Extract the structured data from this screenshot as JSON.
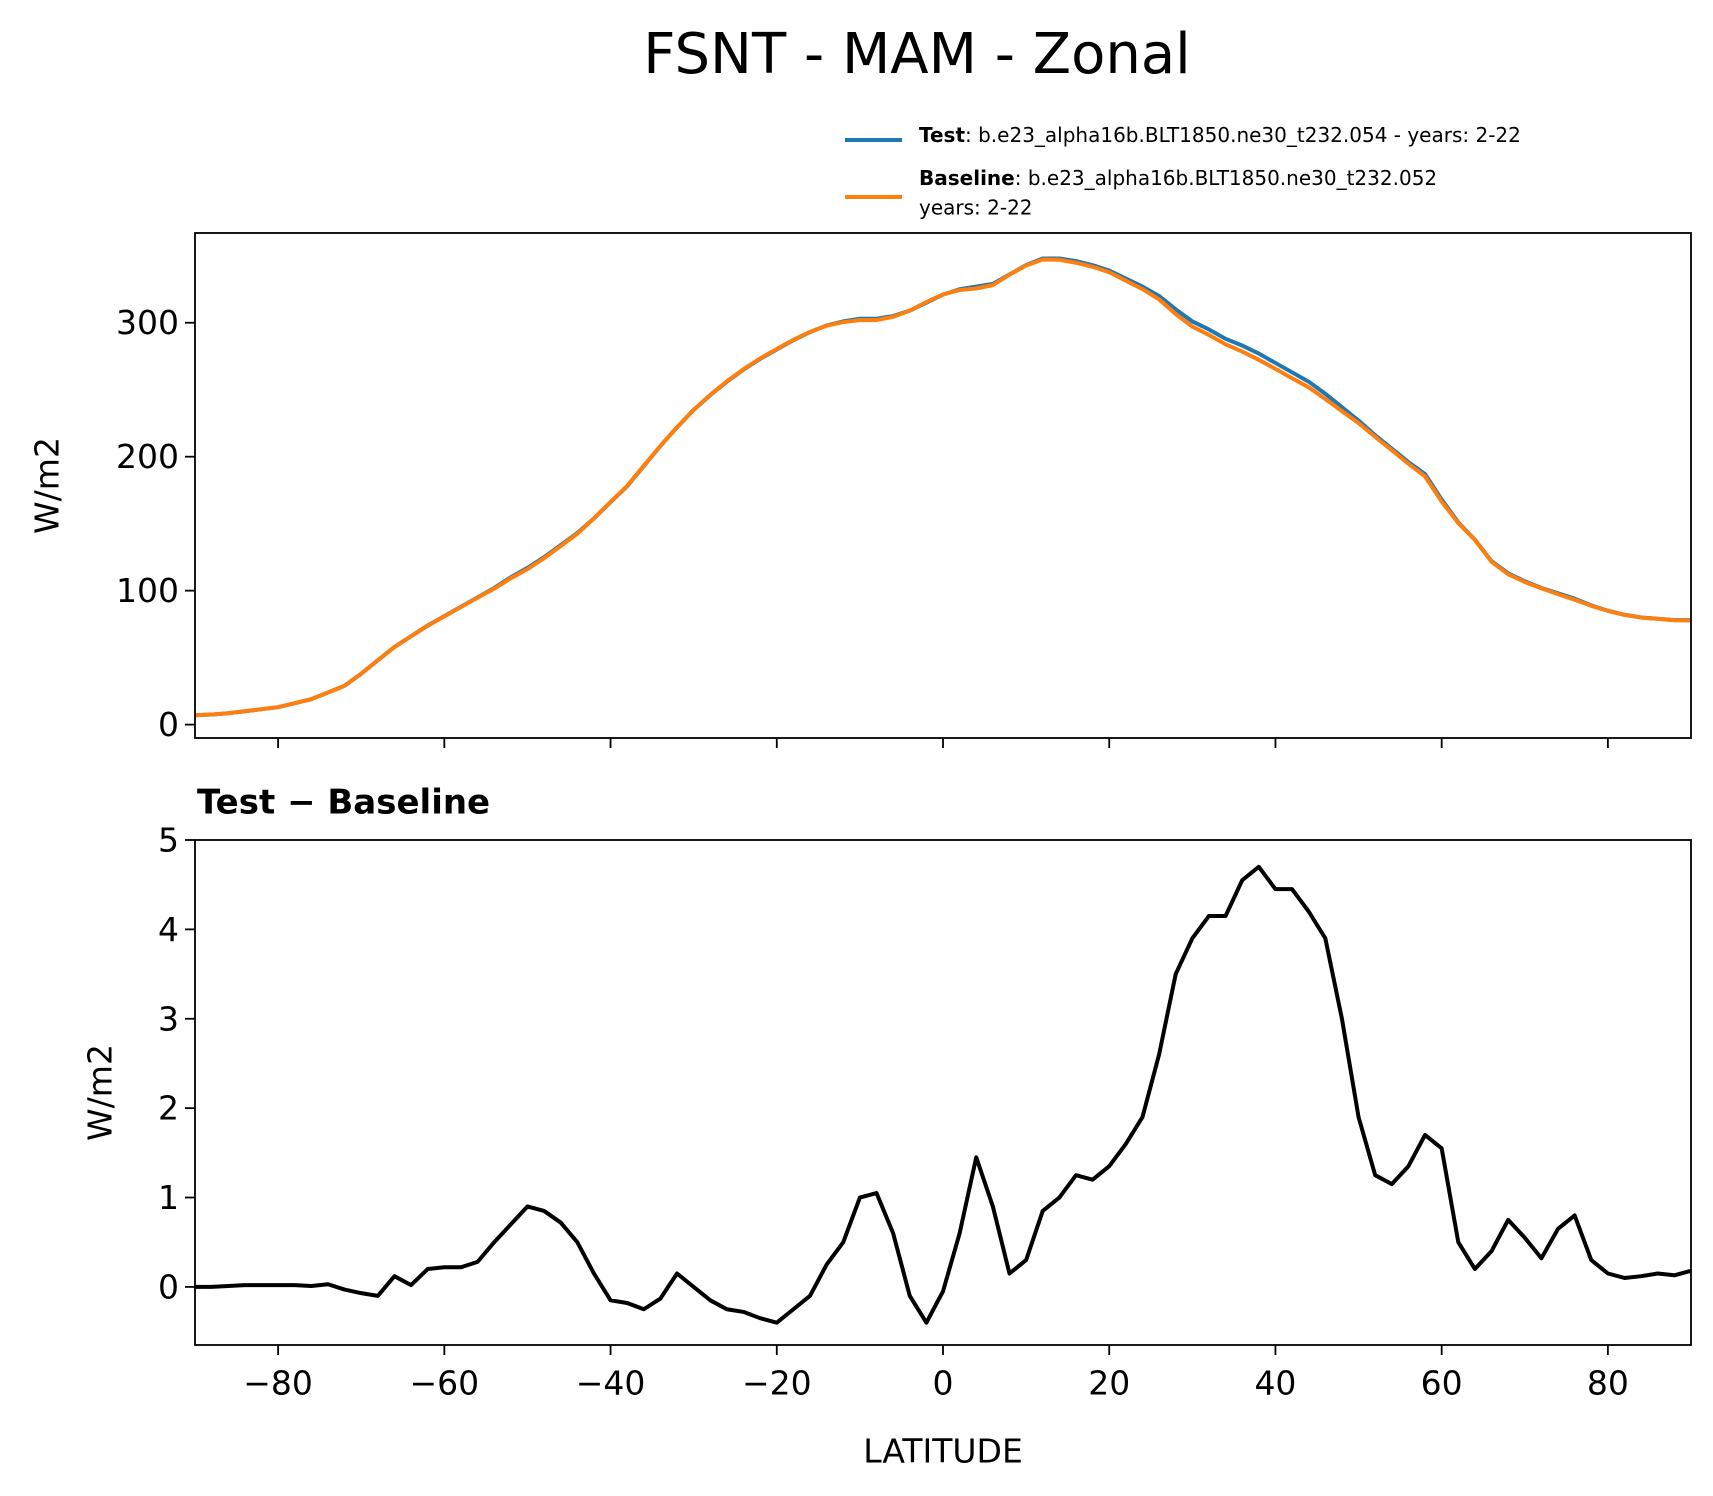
{
  "title": "FSNT - MAM - Zonal",
  "chart_data": [
    {
      "type": "line",
      "ylabel": "W/m2",
      "xlim": [
        -90,
        90
      ],
      "ylim": [
        -10,
        367
      ],
      "xticks": [
        -80,
        -60,
        -40,
        -20,
        0,
        20,
        40,
        60,
        80
      ],
      "yticks": [
        0,
        100,
        200,
        300
      ],
      "x": [
        -90,
        -88,
        -86,
        -84,
        -82,
        -80,
        -78,
        -76,
        -74,
        -72,
        -70,
        -68,
        -66,
        -64,
        -62,
        -60,
        -58,
        -56,
        -54,
        -52,
        -50,
        -48,
        -46,
        -44,
        -42,
        -40,
        -38,
        -36,
        -34,
        -32,
        -30,
        -28,
        -26,
        -24,
        -22,
        -20,
        -18,
        -16,
        -14,
        -12,
        -10,
        -8,
        -6,
        -4,
        -2,
        0,
        2,
        4,
        6,
        8,
        10,
        12,
        14,
        16,
        18,
        20,
        22,
        24,
        26,
        28,
        30,
        32,
        34,
        36,
        38,
        40,
        42,
        44,
        46,
        48,
        50,
        52,
        54,
        56,
        58,
        60,
        62,
        64,
        66,
        68,
        70,
        72,
        74,
        76,
        78,
        80,
        82,
        84,
        86,
        88,
        90
      ],
      "series": [
        {
          "name": "Test",
          "label": ": b.e23_alpha16b.BLT1850.ne30_t232.054 - years: 2-22",
          "color": "#1f77b4",
          "values": [
            7,
            7.5,
            8.5,
            10,
            11.5,
            13,
            16,
            19,
            24,
            29,
            38,
            48,
            58,
            66,
            74,
            81,
            88,
            95,
            102,
            110,
            117,
            125,
            134,
            143,
            154,
            166,
            178,
            193,
            208,
            222,
            235,
            246,
            256,
            265,
            273,
            280,
            287,
            293,
            298,
            301,
            303,
            303,
            305,
            309,
            315,
            321,
            325,
            327,
            329,
            336,
            343,
            348,
            348,
            346,
            343,
            339,
            333,
            327,
            320,
            310,
            301,
            295,
            288,
            283,
            277,
            270,
            263,
            256,
            247,
            237,
            227,
            216,
            206,
            196,
            187,
            168,
            151,
            138,
            122,
            113,
            107,
            102,
            98,
            94,
            89,
            85,
            82,
            80,
            79,
            78,
            78
          ]
        },
        {
          "name": "Baseline",
          "label_lines": [
            ": b.e23_alpha16b.BLT1850.ne30_t232.052",
            "years: 2-22"
          ],
          "color": "#ff7f0e",
          "values": [
            7,
            7.5,
            8.5,
            10.0,
            11.5,
            13.0,
            16.0,
            19.0,
            24.0,
            29.0,
            38.1,
            48.1,
            57.9,
            66.0,
            73.8,
            80.8,
            87.8,
            94.7,
            101.5,
            109.3,
            116.1,
            124.2,
            133.3,
            142.5,
            153.9,
            166.2,
            178.2,
            193.3,
            208.1,
            221.9,
            235,
            246.2,
            256.3,
            265.3,
            273.4,
            280.4,
            287.3,
            293.1,
            297.8,
            300.5,
            302,
            302.0,
            304.4,
            309.1,
            315.4,
            321.1,
            324.4,
            325.6,
            328.1,
            335.9,
            342.7,
            347.2,
            347,
            344.8,
            341.8,
            337.7,
            331.4,
            325.1,
            317.4,
            306.5,
            297.1,
            290.9,
            283.9,
            278.5,
            272.3,
            265.6,
            258.6,
            251.8,
            243.1,
            234,
            225.1,
            214.8,
            204.9,
            194.7,
            185.3,
            166.5,
            150.5,
            137.8,
            121.6,
            112.3,
            106.5,
            101.7,
            97.4,
            93.2,
            88.7,
            84.9,
            81.9,
            79.9,
            78.9,
            77.9,
            77.8
          ]
        }
      ]
    },
    {
      "type": "line",
      "title": "Test − Baseline",
      "xlabel": "LATITUDE",
      "ylabel": "W/m2",
      "xlim": [
        -90,
        90
      ],
      "ylim": [
        -0.65,
        5
      ],
      "xticks": [
        {
          "value": -80,
          "label": "−80"
        },
        {
          "value": -60,
          "label": "−60"
        },
        {
          "value": -40,
          "label": "−40"
        },
        {
          "value": -20,
          "label": "−20"
        },
        0,
        20,
        40,
        60,
        80
      ],
      "yticks": [
        0,
        1,
        2,
        3,
        4,
        5
      ],
      "x": [
        -90,
        -88,
        -86,
        -84,
        -82,
        -80,
        -78,
        -76,
        -74,
        -72,
        -70,
        -68,
        -66,
        -64,
        -62,
        -60,
        -58,
        -56,
        -54,
        -52,
        -50,
        -48,
        -46,
        -44,
        -42,
        -40,
        -38,
        -36,
        -34,
        -32,
        -30,
        -28,
        -26,
        -24,
        -22,
        -20,
        -18,
        -16,
        -14,
        -12,
        -10,
        -8,
        -6,
        -4,
        -2,
        0,
        2,
        4,
        6,
        8,
        10,
        12,
        14,
        16,
        18,
        20,
        22,
        24,
        26,
        28,
        30,
        32,
        34,
        36,
        38,
        40,
        42,
        44,
        46,
        48,
        50,
        52,
        54,
        56,
        58,
        60,
        62,
        64,
        66,
        68,
        70,
        72,
        74,
        76,
        78,
        80,
        82,
        84,
        86,
        88,
        90
      ],
      "series": [
        {
          "color": "#000000",
          "values": [
            0,
            0,
            0.01,
            0.02,
            0.02,
            0.02,
            0.02,
            0.01,
            0.03,
            -0.03,
            -0.07,
            -0.1,
            0.12,
            0.02,
            0.2,
            0.22,
            0.22,
            0.28,
            0.5,
            0.7,
            0.9,
            0.85,
            0.72,
            0.5,
            0.15,
            -0.15,
            -0.18,
            -0.25,
            -0.13,
            0.15,
            0.0,
            -0.15,
            -0.25,
            -0.28,
            -0.35,
            -0.4,
            -0.25,
            -0.1,
            0.25,
            0.5,
            1.0,
            1.05,
            0.6,
            -0.1,
            -0.4,
            -0.05,
            0.6,
            1.45,
            0.9,
            0.15,
            0.3,
            0.85,
            1.0,
            1.25,
            1.2,
            1.35,
            1.6,
            1.9,
            2.6,
            3.5,
            3.9,
            4.15,
            4.15,
            4.55,
            4.7,
            4.45,
            4.45,
            4.2,
            3.9,
            3.0,
            1.9,
            1.25,
            1.15,
            1.35,
            1.7,
            1.55,
            0.5,
            0.2,
            0.4,
            0.75,
            0.55,
            0.32,
            0.65,
            0.8,
            0.3,
            0.15,
            0.1,
            0.12,
            0.15,
            0.13,
            0.18
          ]
        }
      ]
    }
  ]
}
